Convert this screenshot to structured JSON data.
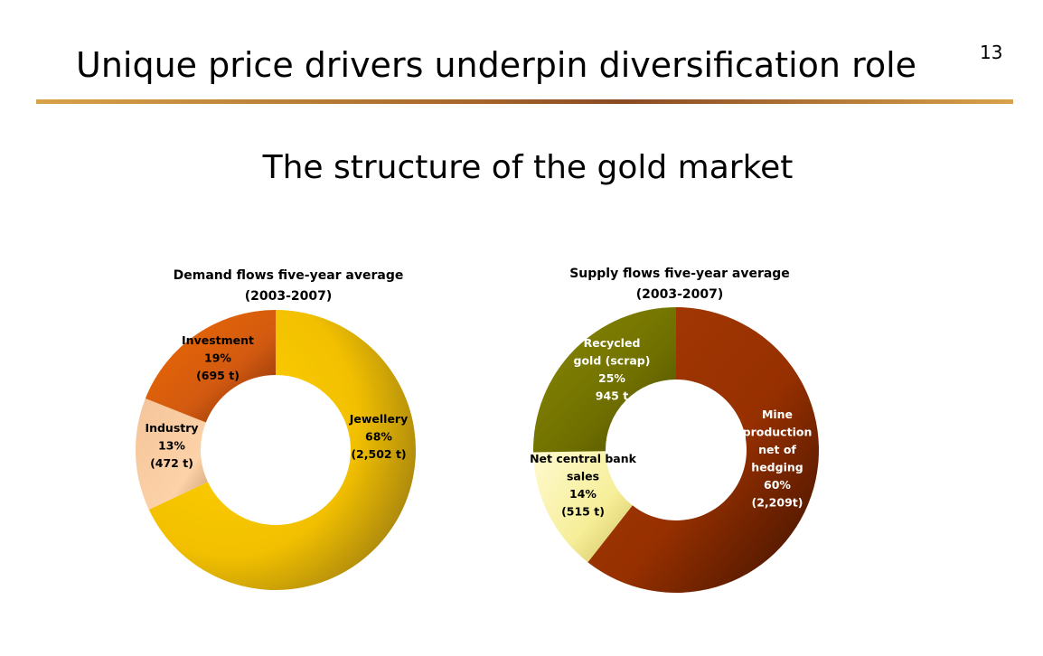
{
  "slide": {
    "title": "Unique price drivers underpin diversification role",
    "page_number": "13",
    "subtitle": "The structure of the gold market"
  },
  "chart_data": [
    {
      "type": "pie",
      "title": [
        "Demand flows five-year average",
        "(2003-2007)"
      ],
      "categories": [
        "Jewellery",
        "Industry",
        "Investment"
      ],
      "values": [
        68,
        13,
        19
      ],
      "unit": "%",
      "tonnes": [
        "(2,502 t)",
        "(472 t)",
        "(695 t)"
      ],
      "labels": [
        [
          "Jewellery",
          "68%",
          "(2,502 t)"
        ],
        [
          "Industry",
          "13%",
          "(472 t)"
        ],
        [
          "Investment",
          "19%",
          "(695 t)"
        ]
      ],
      "colors": [
        "#f5c400",
        "#f3be8c",
        "#e06a10"
      ],
      "label_color": "#000000",
      "donut": true,
      "legend": "none"
    },
    {
      "type": "pie",
      "title": [
        "Supply flows five-year average",
        "(2003-2007)"
      ],
      "categories": [
        "Mine production net of hedging",
        "Net central bank sales",
        "Recycled gold (scrap)"
      ],
      "values": [
        60,
        14,
        25
      ],
      "unit": "%",
      "tonnes": [
        "(2,209t)",
        "(515 t)",
        "945 t"
      ],
      "labels": [
        [
          "Mine",
          "production",
          "net of",
          "hedging",
          "60%",
          "(2,209t)"
        ],
        [
          "Net central bank",
          "sales",
          "14%",
          "(515 t)"
        ],
        [
          "Recycled",
          "gold (scrap)",
          "25%",
          "945 t"
        ]
      ],
      "colors": [
        "#993300",
        "#f7f0a0",
        "#7a7a00"
      ],
      "label_colors": [
        "#ffffff",
        "#000000",
        "#ffffff"
      ],
      "donut": true,
      "legend": "none"
    }
  ]
}
